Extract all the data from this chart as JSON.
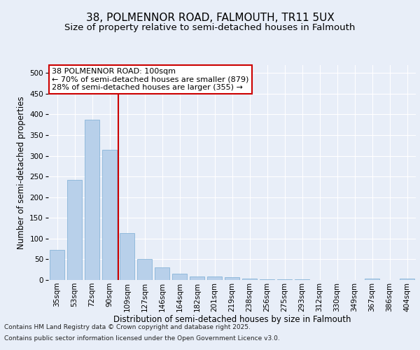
{
  "title": "38, POLMENNOR ROAD, FALMOUTH, TR11 5UX",
  "subtitle": "Size of property relative to semi-detached houses in Falmouth",
  "xlabel": "Distribution of semi-detached houses by size in Falmouth",
  "ylabel": "Number of semi-detached properties",
  "categories": [
    "35sqm",
    "53sqm",
    "72sqm",
    "90sqm",
    "109sqm",
    "127sqm",
    "146sqm",
    "164sqm",
    "182sqm",
    "201sqm",
    "219sqm",
    "238sqm",
    "256sqm",
    "275sqm",
    "293sqm",
    "312sqm",
    "330sqm",
    "349sqm",
    "367sqm",
    "386sqm",
    "404sqm"
  ],
  "values": [
    73,
    242,
    387,
    315,
    113,
    50,
    30,
    15,
    8,
    8,
    7,
    3,
    2,
    1,
    1,
    0,
    0,
    0,
    4,
    0,
    3
  ],
  "bar_color": "#b8d0ea",
  "bar_edge_color": "#7aadd4",
  "vline_x": 3.5,
  "vline_color": "#cc0000",
  "annotation_title": "38 POLMENNOR ROAD: 100sqm",
  "annotation_line1": "← 70% of semi-detached houses are smaller (879)",
  "annotation_line2": "28% of semi-detached houses are larger (355) →",
  "annotation_box_color": "#ffffff",
  "annotation_box_edge": "#cc0000",
  "ylim": [
    0,
    520
  ],
  "yticks": [
    0,
    50,
    100,
    150,
    200,
    250,
    300,
    350,
    400,
    450,
    500
  ],
  "footer_line1": "Contains HM Land Registry data © Crown copyright and database right 2025.",
  "footer_line2": "Contains public sector information licensed under the Open Government Licence v3.0.",
  "bg_color": "#e8eef8",
  "plot_bg_color": "#e8eef8",
  "title_fontsize": 11,
  "subtitle_fontsize": 9.5,
  "axis_label_fontsize": 8.5,
  "tick_fontsize": 7.5,
  "annotation_fontsize": 8,
  "footer_fontsize": 6.5
}
